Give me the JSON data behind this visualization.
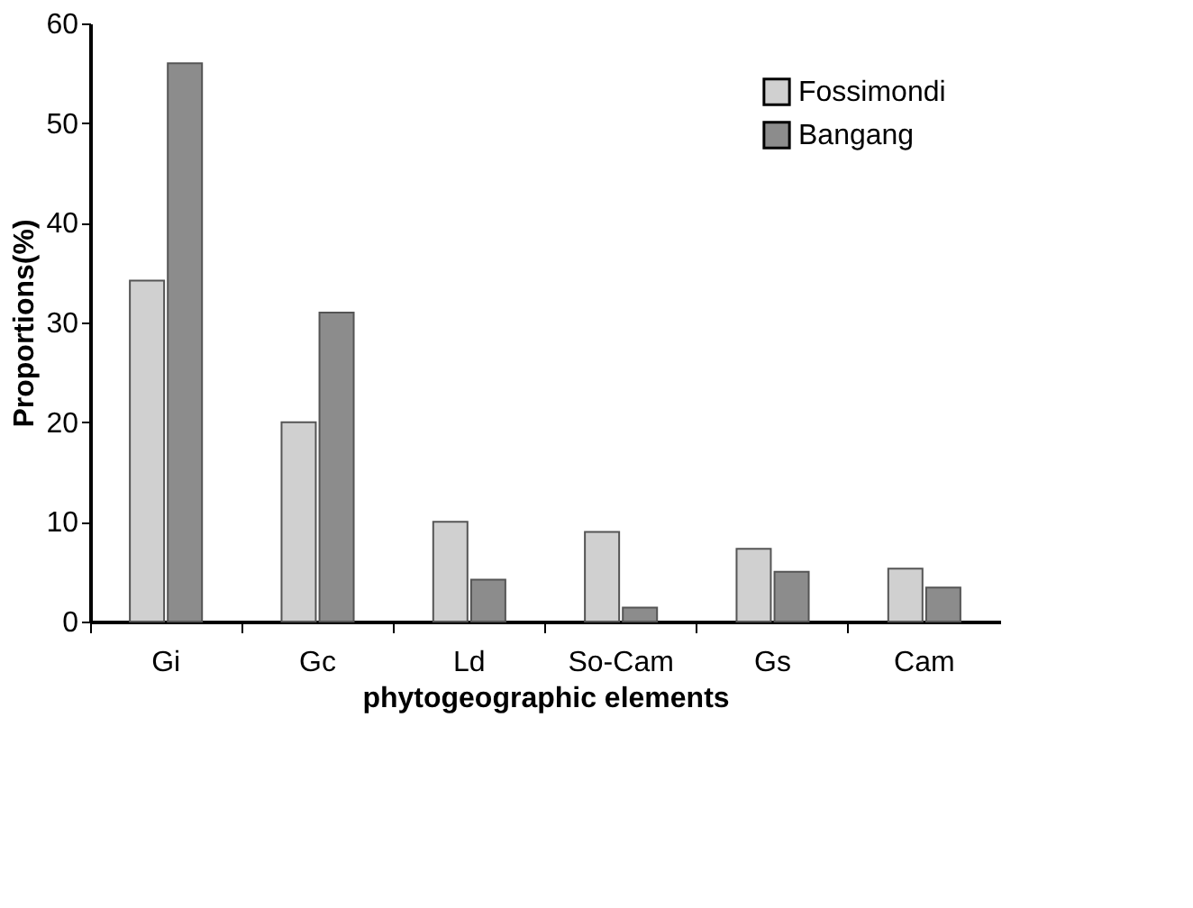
{
  "chart_data": {
    "type": "bar",
    "xlabel": "phytogeographic elements",
    "ylabel": "Proportions(%)",
    "categories": [
      "Gi",
      "Gc",
      "Ld",
      "So-Cam",
      "Gs",
      "Cam"
    ],
    "series": [
      {
        "name": "Fossimondi",
        "color": "#d0d0d0",
        "values": [
          34.2,
          20,
          10,
          9,
          7.3,
          5.3
        ]
      },
      {
        "name": "Bangang",
        "color": "#8c8c8c",
        "values": [
          56,
          31,
          4.2,
          1.4,
          5,
          3.4
        ]
      }
    ],
    "ylim": [
      0,
      60
    ],
    "yticks": [
      0,
      10,
      20,
      30,
      40,
      50,
      60
    ],
    "grid": false,
    "legend": "top right"
  }
}
